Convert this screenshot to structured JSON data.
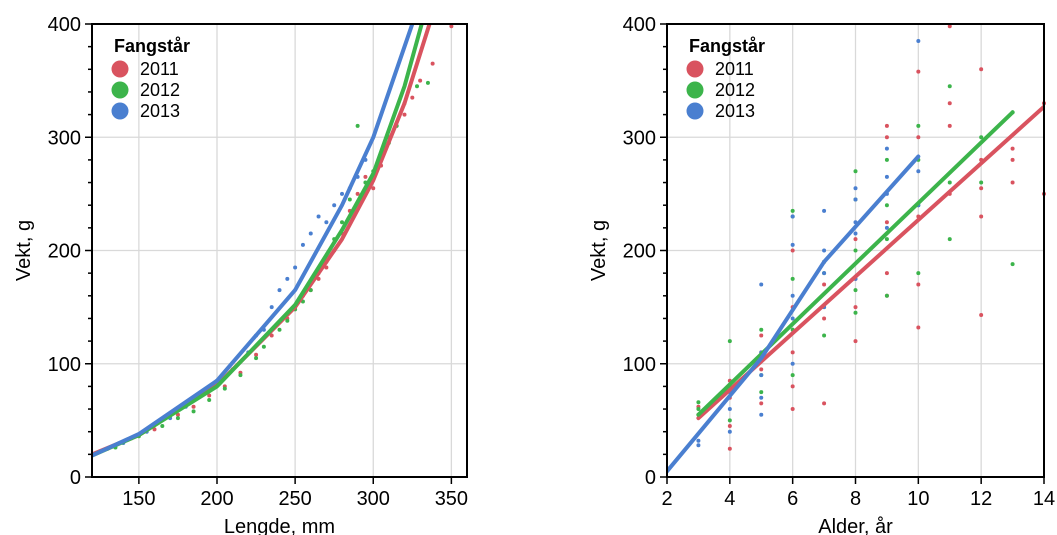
{
  "chart_data": [
    {
      "type": "scatter",
      "title": "",
      "xlabel": "Lengde, mm",
      "ylabel": "Vekt, g",
      "xlim": [
        120,
        360
      ],
      "ylim": [
        0,
        400
      ],
      "xticks": [
        150,
        200,
        250,
        300,
        350
      ],
      "yticks": [
        0,
        100,
        200,
        300,
        400
      ],
      "grid": true,
      "legend": {
        "title": "Fangstår",
        "position": "top-left"
      },
      "series": [
        {
          "name": "2011",
          "color": "#d9535f",
          "points": [
            [
              130,
              25
            ],
            [
              145,
              34
            ],
            [
              160,
              42
            ],
            [
              175,
              55
            ],
            [
              185,
              62
            ],
            [
              195,
              72
            ],
            [
              205,
              80
            ],
            [
              215,
              92
            ],
            [
              225,
              108
            ],
            [
              235,
              125
            ],
            [
              245,
              140
            ],
            [
              250,
              150
            ],
            [
              255,
              160
            ],
            [
              260,
              165
            ],
            [
              265,
              175
            ],
            [
              270,
              185
            ],
            [
              275,
              200
            ],
            [
              280,
              215
            ],
            [
              285,
              235
            ],
            [
              290,
              250
            ],
            [
              295,
              265
            ],
            [
              300,
              255
            ],
            [
              305,
              275
            ],
            [
              310,
              300
            ],
            [
              320,
              320
            ],
            [
              325,
              335
            ],
            [
              330,
              350
            ],
            [
              338,
              365
            ],
            [
              350,
              398
            ]
          ],
          "fit": [
            [
              120,
              20
            ],
            [
              150,
              37
            ],
            [
              200,
              81
            ],
            [
              250,
              150
            ],
            [
              280,
              210
            ],
            [
              300,
              262
            ],
            [
              320,
              330
            ],
            [
              336,
              400
            ]
          ]
        },
        {
          "name": "2012",
          "color": "#3cb44b",
          "points": [
            [
              135,
              26
            ],
            [
              150,
              36
            ],
            [
              165,
              45
            ],
            [
              175,
              52
            ],
            [
              185,
              58
            ],
            [
              195,
              68
            ],
            [
              205,
              78
            ],
            [
              215,
              90
            ],
            [
              225,
              105
            ],
            [
              230,
              115
            ],
            [
              240,
              130
            ],
            [
              245,
              138
            ],
            [
              250,
              148
            ],
            [
              255,
              155
            ],
            [
              260,
              165
            ],
            [
              265,
              180
            ],
            [
              270,
              190
            ],
            [
              275,
              210
            ],
            [
              280,
              225
            ],
            [
              285,
              245
            ],
            [
              290,
              310
            ],
            [
              295,
              260
            ],
            [
              300,
              270
            ],
            [
              310,
              295
            ],
            [
              315,
              310
            ],
            [
              320,
              330
            ],
            [
              328,
              345
            ],
            [
              335,
              348
            ]
          ],
          "fit": [
            [
              120,
              19
            ],
            [
              150,
              37
            ],
            [
              200,
              80
            ],
            [
              250,
              152
            ],
            [
              280,
              218
            ],
            [
              300,
              268
            ],
            [
              320,
              345
            ],
            [
              331,
              400
            ]
          ]
        },
        {
          "name": "2013",
          "color": "#4a7fd0",
          "points": [
            [
              140,
              30
            ],
            [
              155,
              40
            ],
            [
              170,
              52
            ],
            [
              180,
              62
            ],
            [
              190,
              72
            ],
            [
              200,
              85
            ],
            [
              210,
              95
            ],
            [
              220,
              110
            ],
            [
              225,
              125
            ],
            [
              230,
              130
            ],
            [
              235,
              150
            ],
            [
              240,
              165
            ],
            [
              245,
              175
            ],
            [
              250,
              185
            ],
            [
              255,
              205
            ],
            [
              260,
              215
            ],
            [
              265,
              230
            ],
            [
              270,
              225
            ],
            [
              275,
              240
            ],
            [
              280,
              250
            ],
            [
              285,
              255
            ],
            [
              290,
              265
            ],
            [
              295,
              280
            ]
          ],
          "fit": [
            [
              120,
              19
            ],
            [
              150,
              38
            ],
            [
              200,
              85
            ],
            [
              250,
              165
            ],
            [
              280,
              240
            ],
            [
              300,
              300
            ],
            [
              320,
              380
            ],
            [
              325,
              400
            ]
          ]
        }
      ]
    },
    {
      "type": "scatter",
      "title": "",
      "xlabel": "Alder, år",
      "ylabel": "Vekt, g",
      "xlim": [
        2,
        14
      ],
      "ylim": [
        0,
        400
      ],
      "xticks": [
        2,
        4,
        6,
        8,
        10,
        12,
        14
      ],
      "yticks": [
        0,
        100,
        200,
        300,
        400
      ],
      "grid": true,
      "legend": {
        "title": "Fangstår",
        "position": "top-left"
      },
      "series": [
        {
          "name": "2011",
          "color": "#d9535f",
          "points": [
            [
              3,
              55
            ],
            [
              3,
              62
            ],
            [
              4,
              25
            ],
            [
              4,
              45
            ],
            [
              4,
              70
            ],
            [
              4,
              85
            ],
            [
              5,
              65
            ],
            [
              5,
              95
            ],
            [
              5,
              110
            ],
            [
              5,
              125
            ],
            [
              6,
              60
            ],
            [
              6,
              80
            ],
            [
              6,
              110
            ],
            [
              6,
              150
            ],
            [
              6,
              200
            ],
            [
              7,
              65
            ],
            [
              7,
              140
            ],
            [
              7,
              170
            ],
            [
              7,
              190
            ],
            [
              8,
              120
            ],
            [
              8,
              150
            ],
            [
              8,
              175
            ],
            [
              8,
              210
            ],
            [
              9,
              160
            ],
            [
              9,
              180
            ],
            [
              9,
              225
            ],
            [
              9,
              300
            ],
            [
              9,
              310
            ],
            [
              10,
              132
            ],
            [
              10,
              170
            ],
            [
              10,
              230
            ],
            [
              10,
              300
            ],
            [
              10,
              358
            ],
            [
              11,
              250
            ],
            [
              11,
              310
            ],
            [
              11,
              330
            ],
            [
              11,
              398
            ],
            [
              12,
              143
            ],
            [
              12,
              230
            ],
            [
              12,
              255
            ],
            [
              12,
              280
            ],
            [
              12,
              360
            ],
            [
              13,
              260
            ],
            [
              13,
              280
            ],
            [
              13,
              290
            ],
            [
              14,
              250
            ],
            [
              14,
              330
            ]
          ],
          "fit": [
            [
              3,
              52
            ],
            [
              14,
              327
            ]
          ]
        },
        {
          "name": "2012",
          "color": "#3cb44b",
          "points": [
            [
              3,
              60
            ],
            [
              3,
              66
            ],
            [
              4,
              50
            ],
            [
              4,
              80
            ],
            [
              4,
              120
            ],
            [
              5,
              75
            ],
            [
              5,
              90
            ],
            [
              5,
              130
            ],
            [
              6,
              90
            ],
            [
              6,
              130
            ],
            [
              6,
              175
            ],
            [
              6,
              230
            ],
            [
              6,
              235
            ],
            [
              7,
              125
            ],
            [
              7,
              150
            ],
            [
              7,
              180
            ],
            [
              7,
              190
            ],
            [
              8,
              145
            ],
            [
              8,
              165
            ],
            [
              8,
              200
            ],
            [
              8,
              245
            ],
            [
              8,
              270
            ],
            [
              9,
              160
            ],
            [
              9,
              210
            ],
            [
              9,
              240
            ],
            [
              9,
              280
            ],
            [
              10,
              180
            ],
            [
              10,
              240
            ],
            [
              10,
              280
            ],
            [
              10,
              310
            ],
            [
              11,
              210
            ],
            [
              11,
              260
            ],
            [
              11,
              345
            ],
            [
              12,
              260
            ],
            [
              12,
              300
            ],
            [
              13,
              188
            ],
            [
              13,
              322
            ]
          ],
          "fit": [
            [
              3,
              55
            ],
            [
              13,
              322
            ]
          ]
        },
        {
          "name": "2013",
          "color": "#4a7fd0",
          "points": [
            [
              3,
              28
            ],
            [
              3,
              32
            ],
            [
              4,
              40
            ],
            [
              4,
              60
            ],
            [
              4,
              75
            ],
            [
              5,
              55
            ],
            [
              5,
              70
            ],
            [
              5,
              90
            ],
            [
              5,
              110
            ],
            [
              5,
              170
            ],
            [
              6,
              100
            ],
            [
              6,
              140
            ],
            [
              6,
              160
            ],
            [
              6,
              205
            ],
            [
              6,
              230
            ],
            [
              7,
              150
            ],
            [
              7,
              180
            ],
            [
              7,
              200
            ],
            [
              7,
              235
            ],
            [
              8,
              175
            ],
            [
              8,
              215
            ],
            [
              8,
              225
            ],
            [
              8,
              245
            ],
            [
              8,
              255
            ],
            [
              9,
              220
            ],
            [
              9,
              250
            ],
            [
              9,
              265
            ],
            [
              9,
              290
            ],
            [
              10,
              240
            ],
            [
              10,
              270
            ],
            [
              10,
              385
            ]
          ],
          "fit": [
            [
              2,
              5
            ],
            [
              5,
              105
            ],
            [
              7,
              190
            ],
            [
              10,
              283
            ]
          ]
        }
      ]
    }
  ]
}
